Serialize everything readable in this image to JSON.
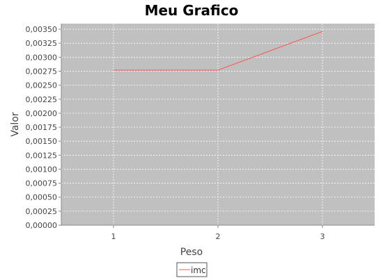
{
  "chart_data": {
    "type": "line",
    "title": "Meu Grafico",
    "xlabel": "Peso",
    "ylabel": "Valor",
    "x": [
      1,
      2,
      3
    ],
    "series": [
      {
        "name": "imc",
        "values": [
          0.00277,
          0.00277,
          0.00346
        ],
        "color": "#ff5555"
      }
    ],
    "ylim": [
      0,
      0.0036
    ],
    "yticks": [
      0,
      0.00025,
      0.0005,
      0.00075,
      0.001,
      0.00125,
      0.0015,
      0.00175,
      0.002,
      0.00225,
      0.0025,
      0.00275,
      0.003,
      0.00325,
      0.0035
    ],
    "ytick_labels": [
      "0,00000",
      "0,00025",
      "0,00050",
      "0,00075",
      "0,00100",
      "0,00125",
      "0,00150",
      "0,00175",
      "0,00200",
      "0,00225",
      "0,00250",
      "0,00275",
      "0,00300",
      "0,00325",
      "0,00350"
    ],
    "xticks": [
      1,
      2,
      3
    ],
    "xtick_labels": [
      "1",
      "2",
      "3"
    ],
    "xlim": [
      0.5,
      3.5
    ],
    "grid": true,
    "plot_background": "#c0c0c0",
    "grid_color": "#ffffff",
    "legend_position": "bottom"
  }
}
